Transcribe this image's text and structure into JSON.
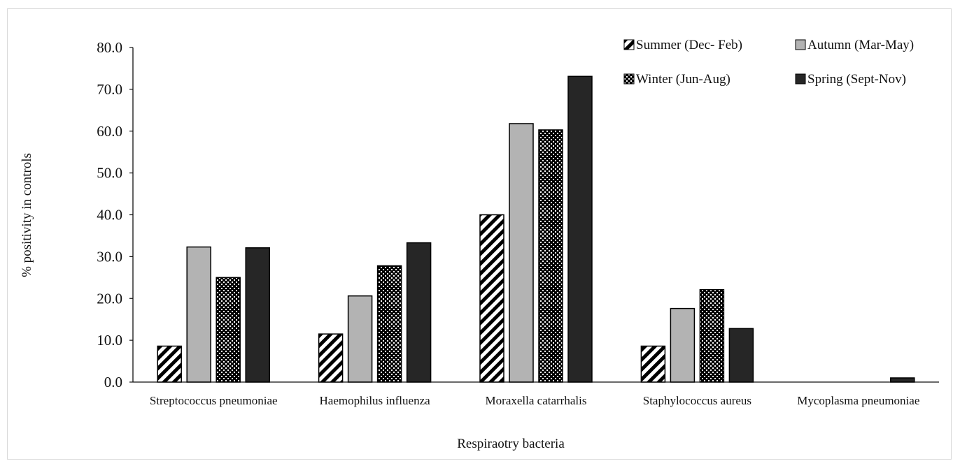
{
  "chart_data": {
    "type": "bar",
    "title": "",
    "xlabel": "Respiraotry bacteria",
    "ylabel": "% positivity in controls",
    "ylim": [
      0,
      80
    ],
    "yticks": [
      "0.0",
      "10.0",
      "20.0",
      "30.0",
      "40.0",
      "50.0",
      "60.0",
      "70.0",
      "80.0"
    ],
    "grid": false,
    "legend_position": "top-right",
    "categories": [
      "Streptococcus pneumoniae",
      "Haemophilus influenza",
      "Moraxella catarrhalis",
      "Staphylococcus aureus",
      "Mycoplasma pneumoniae"
    ],
    "series": [
      {
        "name": "Summer (Dec- Feb)",
        "pattern": "diagonal-stripes",
        "color": "#000000",
        "values": [
          8.6,
          11.5,
          40.0,
          8.6,
          0.0
        ]
      },
      {
        "name": "Autumn (Mar-May)",
        "pattern": "solid",
        "color": "#b3b3b3",
        "values": [
          32.3,
          20.6,
          61.8,
          17.6,
          0.0
        ]
      },
      {
        "name": "Winter (Jun-Aug)",
        "pattern": "checker",
        "color": "#000000",
        "values": [
          25.0,
          27.8,
          60.3,
          22.1,
          0.0
        ]
      },
      {
        "name": "Spring (Sept-Nov)",
        "pattern": "solid",
        "color": "#262626",
        "values": [
          32.1,
          33.3,
          73.1,
          12.8,
          1.0
        ]
      }
    ]
  }
}
